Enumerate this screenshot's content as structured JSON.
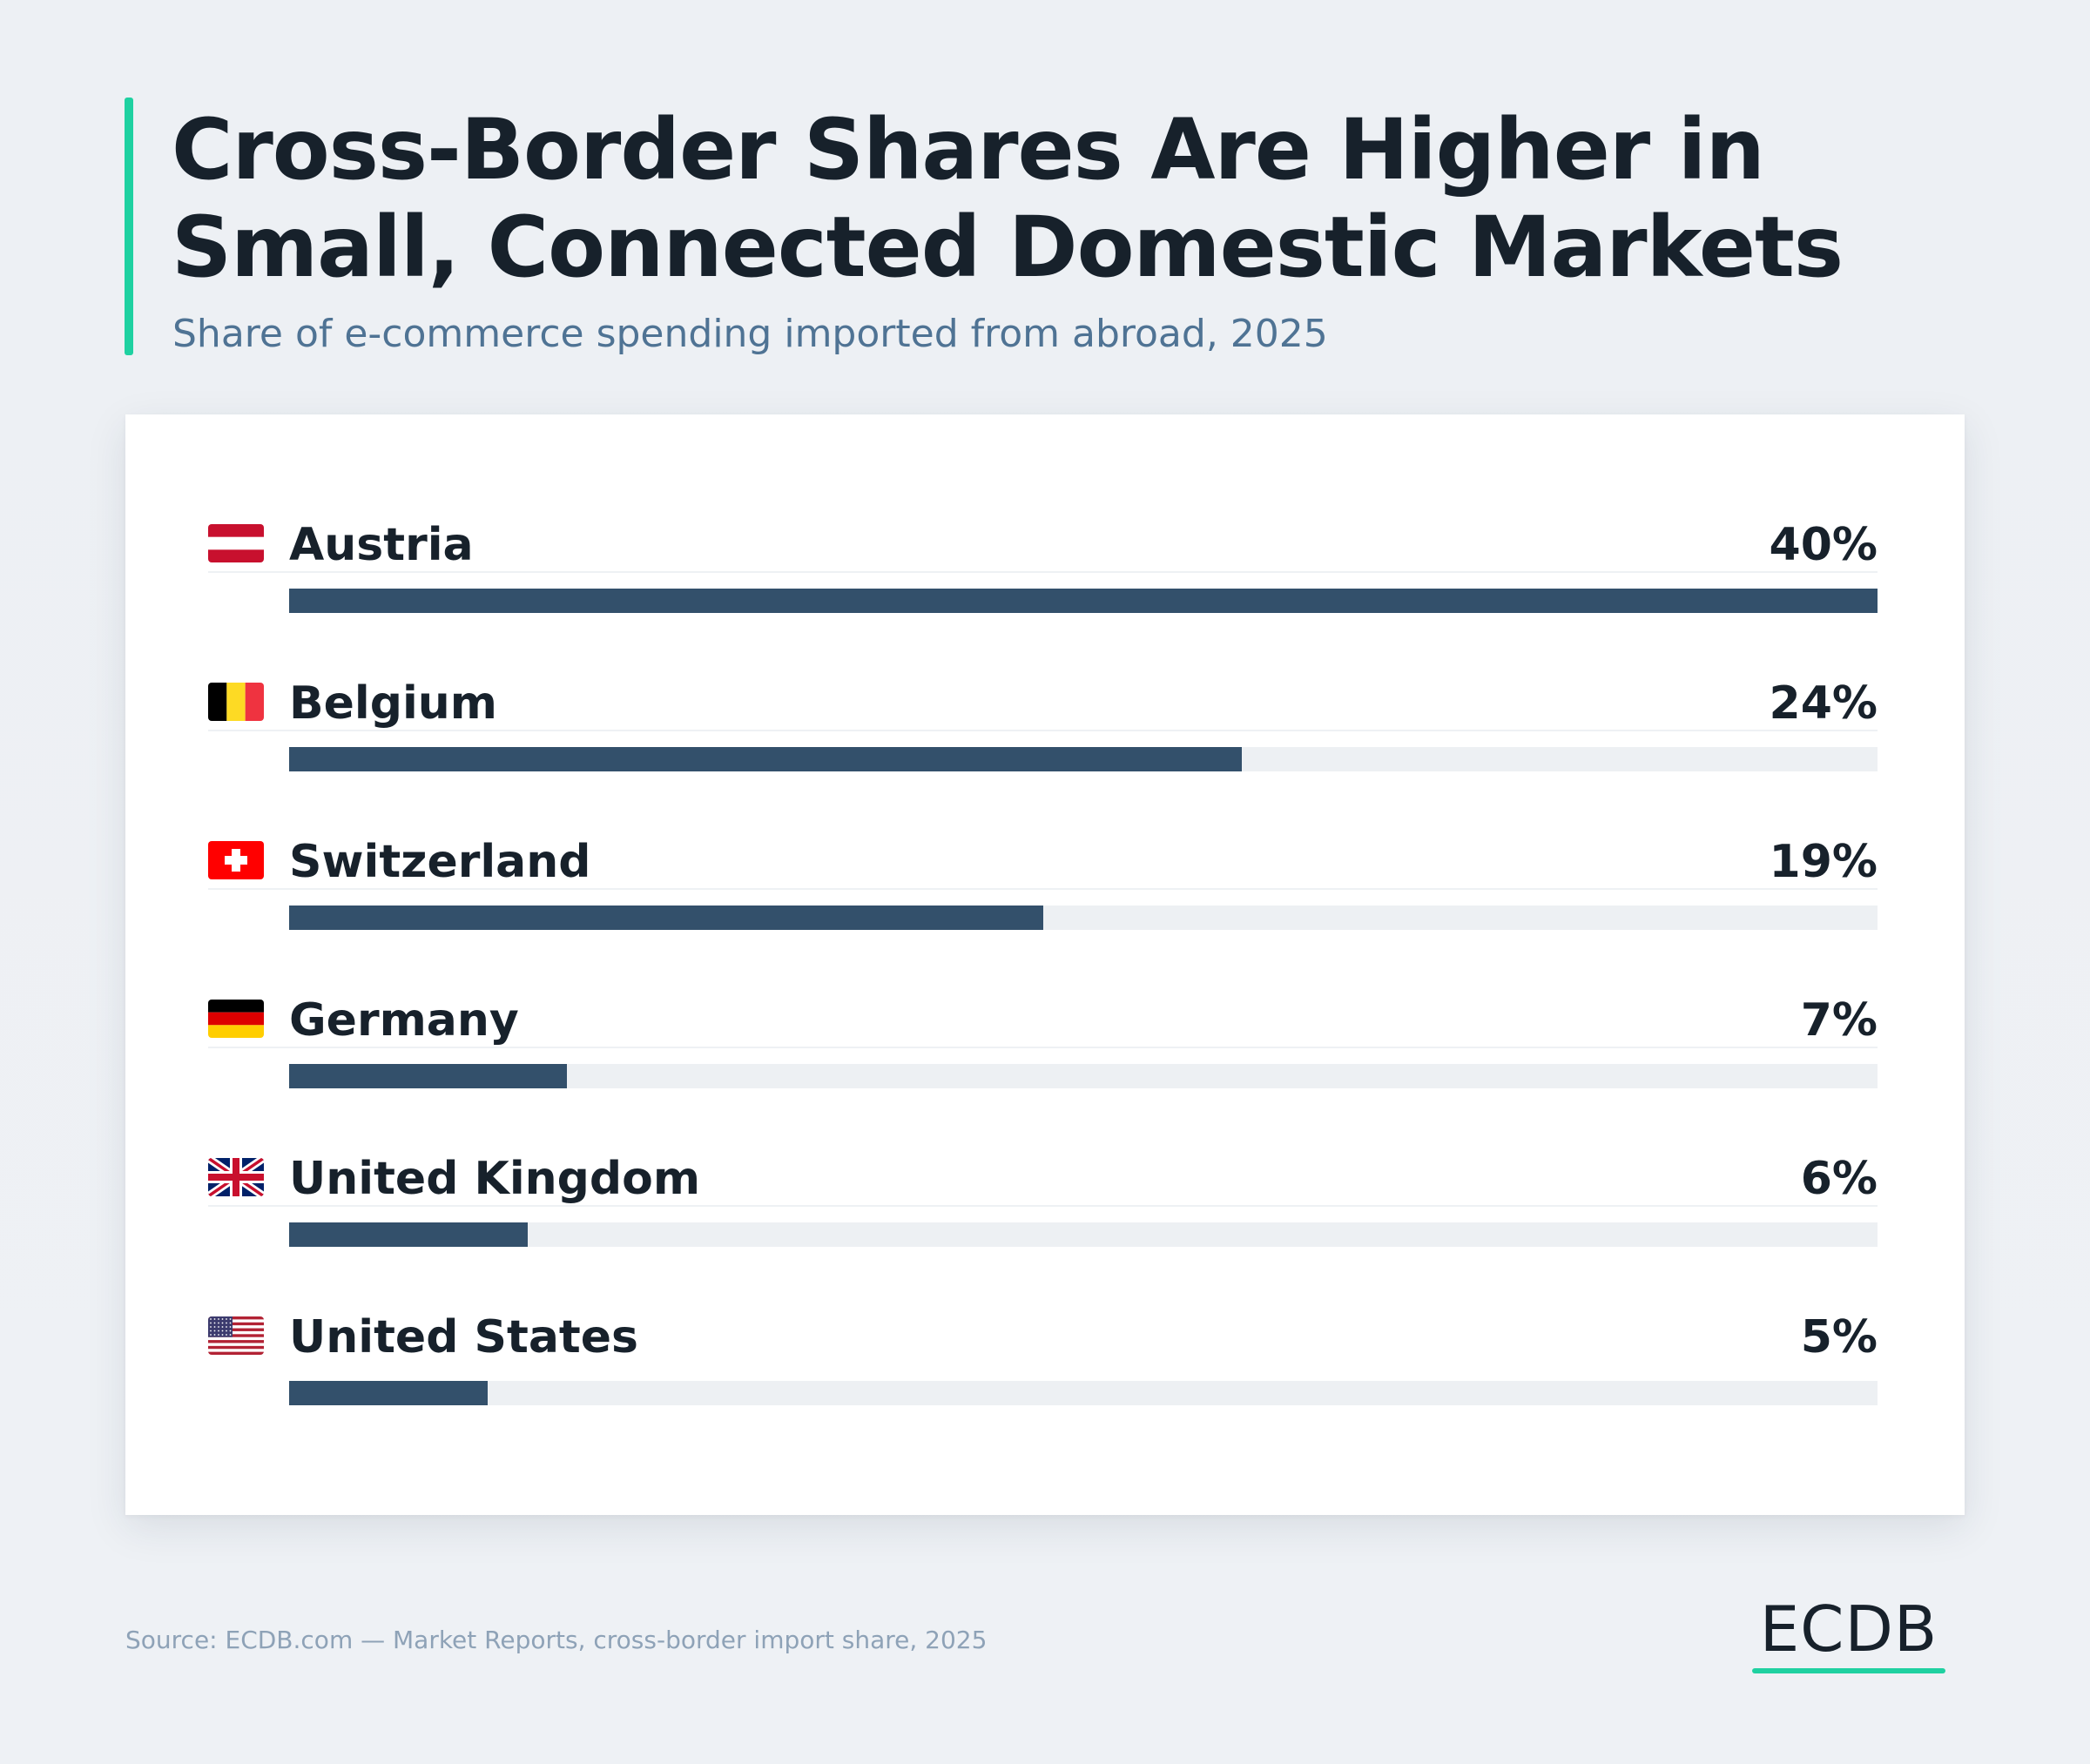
{
  "header": {
    "title": "Cross-Border Shares Are Higher in Small, Connected Domestic Markets",
    "subtitle": "Share of e-commerce spending imported from abroad, 2025"
  },
  "colors": {
    "accent": "#1fd1a1",
    "bar": "#33506b",
    "track": "#edf0f3",
    "title": "#17212b",
    "subtitle": "#4f7394",
    "source": "#8ea2b7"
  },
  "chart_data": {
    "type": "bar",
    "orientation": "horizontal",
    "unit": "%",
    "xlim": [
      0,
      40
    ],
    "categories": [
      "Austria",
      "Belgium",
      "Switzerland",
      "Germany",
      "United Kingdom",
      "United States"
    ],
    "values": [
      40,
      24,
      19,
      7,
      6,
      5
    ],
    "value_labels": [
      "40%",
      "24%",
      "19%",
      "7%",
      "6%",
      "5%"
    ],
    "flags": [
      "austria-flag-icon",
      "belgium-flag-icon",
      "switzerland-flag-icon",
      "germany-flag-icon",
      "uk-flag-icon",
      "us-flag-icon"
    ],
    "grid": false,
    "legend": "none"
  },
  "footer": {
    "source": "Source: ECDB.com — Market Reports, cross-border import share, 2025",
    "logo": "ECDB"
  }
}
